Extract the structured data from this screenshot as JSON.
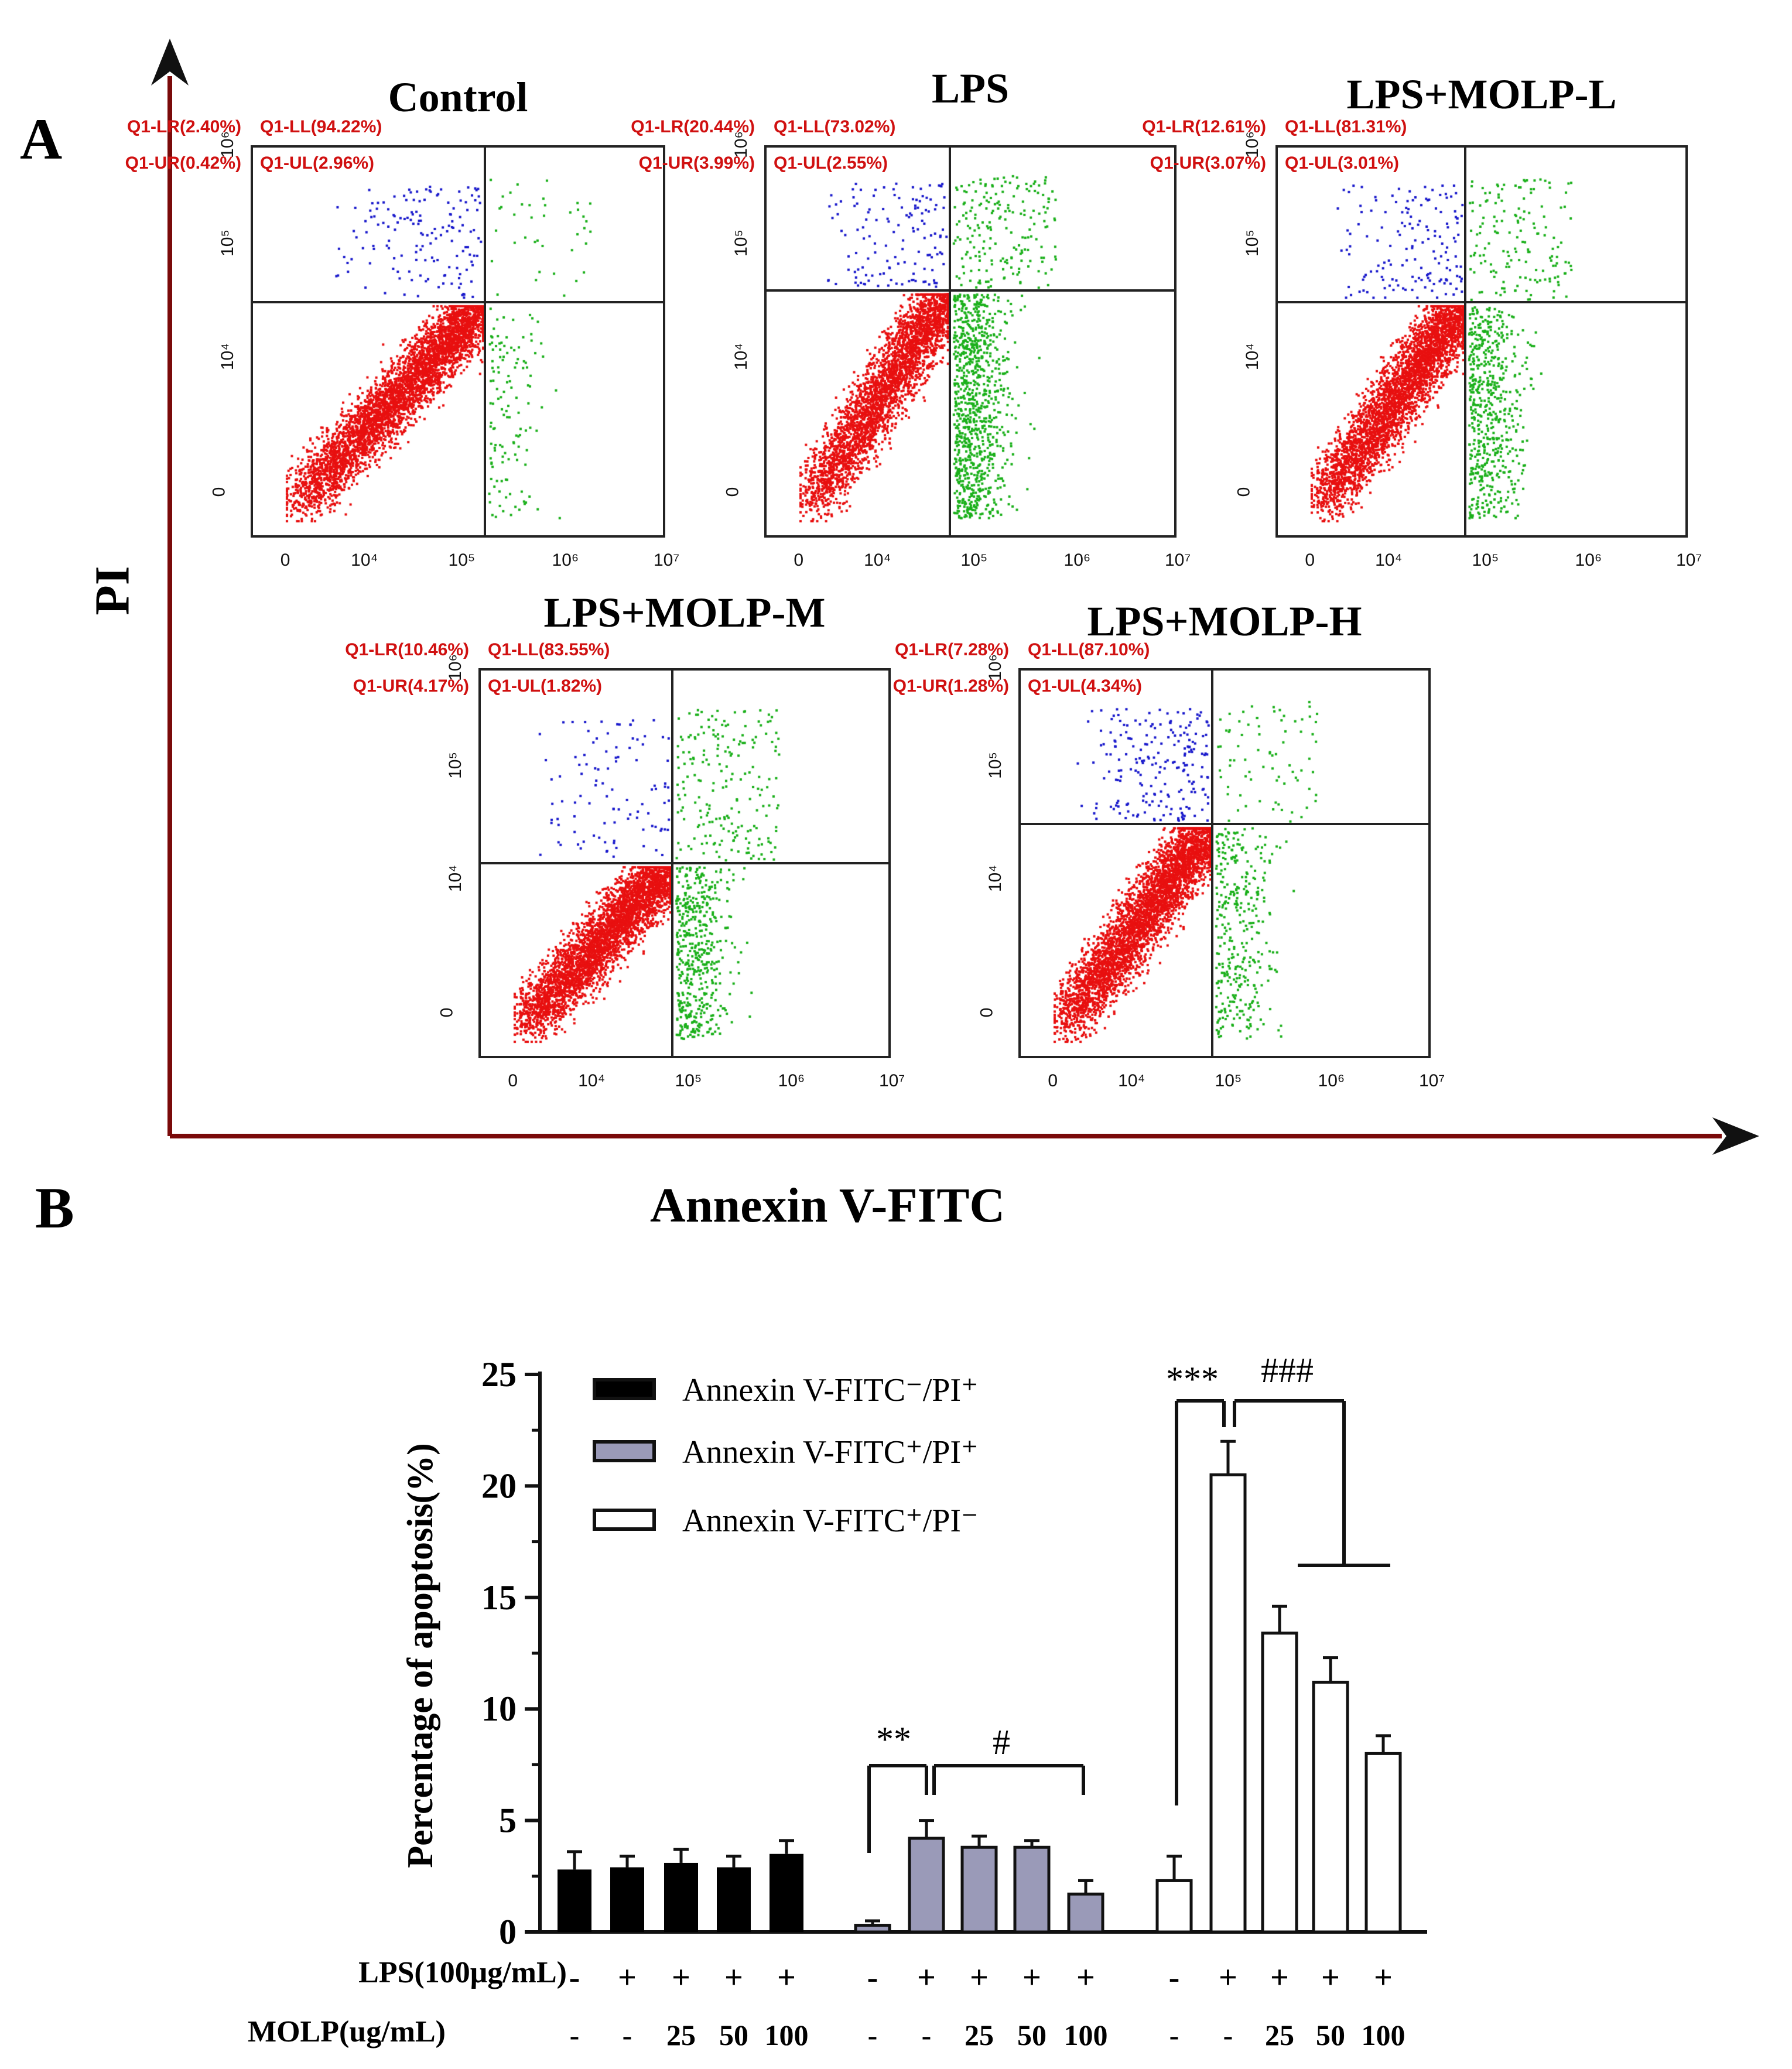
{
  "panel_a": {
    "letter": "A",
    "y_axis_label": "PI",
    "x_axis_label": "Annexin V-FITC",
    "x_ticks": [
      "0",
      "10⁴",
      "10⁵",
      "10⁶",
      "10⁷"
    ],
    "y_ticks": [
      "0",
      "10⁴",
      "10⁵",
      "10⁶"
    ],
    "plots": [
      {
        "title": "Control",
        "UL": "Q1-UL(2.96%)",
        "UR": "Q1-UR(0.42%)",
        "LL": "Q1-LL(94.22%)",
        "LR": "Q1-LR(2.40%)",
        "pct": [
          2.96,
          0.42,
          94.22,
          2.4
        ]
      },
      {
        "title": "LPS",
        "UL": "Q1-UL(2.55%)",
        "UR": "Q1-UR(3.99%)",
        "LL": "Q1-LL(73.02%)",
        "LR": "Q1-LR(20.44%)",
        "pct": [
          2.55,
          3.99,
          73.02,
          20.44
        ]
      },
      {
        "title": "LPS+MOLP-L",
        "UL": "Q1-UL(3.01%)",
        "UR": "Q1-UR(3.07%)",
        "LL": "Q1-LL(81.31%)",
        "LR": "Q1-LR(12.61%)",
        "pct": [
          3.01,
          3.07,
          81.31,
          12.61
        ]
      },
      {
        "title": "LPS+MOLP-M",
        "UL": "Q1-UL(1.82%)",
        "UR": "Q1-UR(4.17%)",
        "LL": "Q1-LL(83.55%)",
        "LR": "Q1-LR(10.46%)",
        "pct": [
          1.82,
          4.17,
          83.55,
          10.46
        ]
      },
      {
        "title": "LPS+MOLP-H",
        "UL": "Q1-UL(4.34%)",
        "UR": "Q1-UR(1.28%)",
        "LL": "Q1-LL(87.10%)",
        "LR": "Q1-LR(7.28%)",
        "pct": [
          4.34,
          1.28,
          87.1,
          7.28
        ]
      }
    ],
    "colors": {
      "UL": "#1a1acc",
      "UR": "#1bb01b",
      "LL": "#e81010",
      "LR": "#1bb01b",
      "labels": "#d01010"
    }
  },
  "chart_data": {
    "type": "bar",
    "letter": "B",
    "ylabel": "Percentage of apoptosis(%)",
    "ylim": [
      0,
      25
    ],
    "yticks": [
      "0",
      "5",
      "10",
      "15",
      "20",
      "25"
    ],
    "legend": [
      "Annexin V-FITC⁻/PI⁺",
      "Annexin V-FITC⁺/PI⁺",
      "Annexin V-FITC⁺/PI⁻"
    ],
    "legend_position": "top-left",
    "series": [
      {
        "name": "Annexin V-FITC⁻/PI⁺",
        "color": "#000000",
        "values": [
          2.8,
          2.9,
          3.1,
          2.9,
          3.5
        ],
        "errors": [
          0.8,
          0.5,
          0.6,
          0.5,
          0.6
        ]
      },
      {
        "name": "Annexin V-FITC⁺/PI⁺",
        "color": "#9a9ab8",
        "values": [
          0.3,
          4.2,
          3.8,
          3.8,
          1.7
        ],
        "errors": [
          0.2,
          0.8,
          0.5,
          0.3,
          0.6
        ]
      },
      {
        "name": "Annexin V-FITC⁺/PI⁻",
        "color": "#ffffff",
        "values": [
          2.3,
          20.5,
          13.4,
          11.2,
          8.0
        ],
        "errors": [
          1.1,
          1.5,
          1.2,
          1.1,
          0.8
        ]
      }
    ],
    "row_labels": {
      "lps": "LPS(100μg/mL)",
      "molp": "MOLP(ug/mL)"
    },
    "lps_row": [
      "-",
      "+",
      "+",
      "+",
      "+"
    ],
    "molp_row": [
      "-",
      "-",
      "25",
      "50",
      "100"
    ],
    "annotations": {
      "s2": "**",
      "h2": "#",
      "s3": "***",
      "h3": "###"
    }
  }
}
